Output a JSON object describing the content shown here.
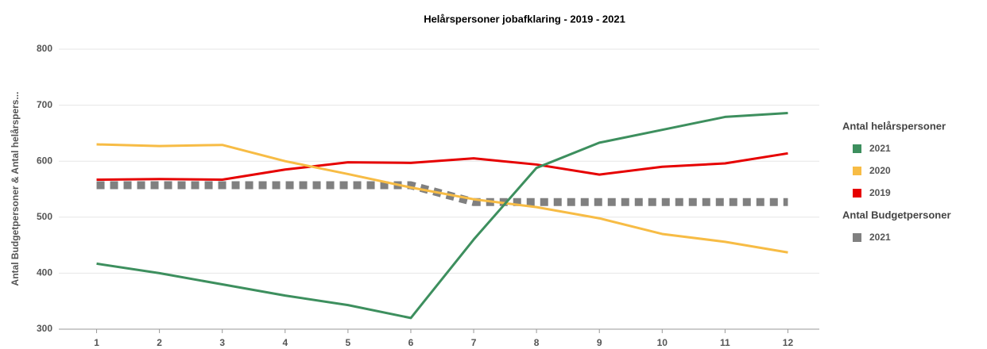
{
  "chart_data": {
    "type": "line",
    "title": "Helårspersoner jobafklaring - 2019 - 2021",
    "y_label": "Antal Budgetpersoner & Antal helårspers...",
    "categories": [
      "1",
      "2",
      "3",
      "4",
      "5",
      "6",
      "7",
      "8",
      "9",
      "10",
      "11",
      "12"
    ],
    "ylim": [
      300,
      800
    ],
    "yticks": [
      300,
      400,
      500,
      600,
      700,
      800
    ],
    "grid": true,
    "series_groups": [
      {
        "name": "Antal helårspersoner",
        "series": [
          {
            "name": "2021",
            "color": "#3d8f5e",
            "values": [
              417,
              400,
              380,
              360,
              343,
              320,
              460,
              588,
              633,
              656,
              679,
              686
            ]
          },
          {
            "name": "2020",
            "color": "#f7bc45",
            "values": [
              630,
              627,
              629,
              600,
              577,
              553,
              532,
              518,
              498,
              470,
              456,
              437
            ]
          },
          {
            "name": "2019",
            "color": "#e60000",
            "values": [
              567,
              568,
              567,
              585,
              598,
              597,
              605,
              594,
              576,
              590,
              596,
              614
            ]
          }
        ]
      },
      {
        "name": "Antal Budgetpersoner",
        "series": [
          {
            "name": "2021",
            "color": "#808080",
            "dashed": true,
            "values": [
              557,
              557,
              557,
              557,
              557,
              557,
              527,
              527,
              527,
              527,
              527,
              527
            ]
          }
        ]
      }
    ]
  }
}
